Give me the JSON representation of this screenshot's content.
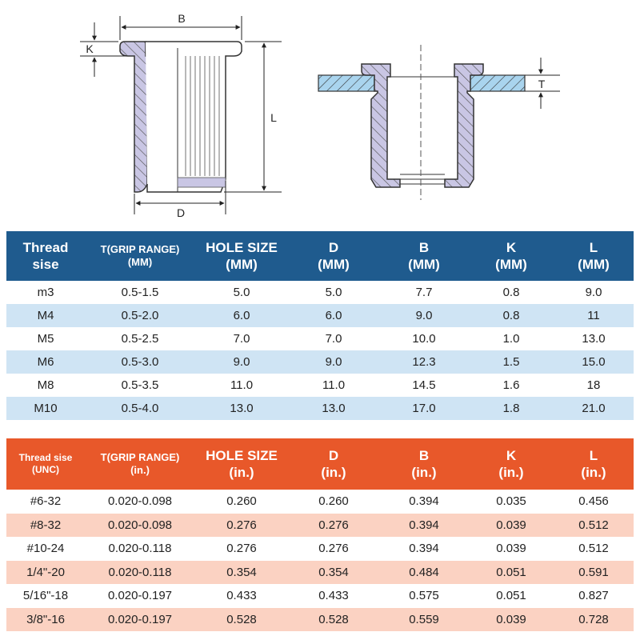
{
  "diagram": {
    "labels": {
      "B": "B",
      "K": "K",
      "L": "L",
      "D": "D",
      "T": "T"
    }
  },
  "metric_table": {
    "headers": [
      {
        "line1": "Thread",
        "line2": "sise"
      },
      {
        "line1": "T(GRIP RANGE)",
        "line2": "(MM)"
      },
      {
        "line1": "HOLE SIZE",
        "line2": "(MM)"
      },
      {
        "line1": "D",
        "line2": "(MM)"
      },
      {
        "line1": "B",
        "line2": "(MM)"
      },
      {
        "line1": "K",
        "line2": "(MM)"
      },
      {
        "line1": "L",
        "line2": "(MM)"
      }
    ],
    "rows": [
      [
        "m3",
        "0.5-1.5",
        "5.0",
        "5.0",
        "7.7",
        "0.8",
        "9.0"
      ],
      [
        "M4",
        "0.5-2.0",
        "6.0",
        "6.0",
        "9.0",
        "0.8",
        "11"
      ],
      [
        "M5",
        "0.5-2.5",
        "7.0",
        "7.0",
        "10.0",
        "1.0",
        "13.0"
      ],
      [
        "M6",
        "0.5-3.0",
        "9.0",
        "9.0",
        "12.3",
        "1.5",
        "15.0"
      ],
      [
        "M8",
        "0.5-3.5",
        "11.0",
        "11.0",
        "14.5",
        "1.6",
        "18"
      ],
      [
        "M10",
        "0.5-4.0",
        "13.0",
        "13.0",
        "17.0",
        "1.8",
        "21.0"
      ]
    ]
  },
  "unc_table": {
    "headers": [
      {
        "line1": "Thread sise",
        "line2": "(UNC)"
      },
      {
        "line1": "T(GRIP RANGE)",
        "line2": "(in.)"
      },
      {
        "line1": "HOLE SIZE",
        "line2": "(in.)"
      },
      {
        "line1": "D",
        "line2": "(in.)"
      },
      {
        "line1": "B",
        "line2": "(in.)"
      },
      {
        "line1": "K",
        "line2": "(in.)"
      },
      {
        "line1": "L",
        "line2": "(in.)"
      }
    ],
    "rows": [
      [
        "#6-32",
        "0.020-0.098",
        "0.260",
        "0.260",
        "0.394",
        "0.035",
        "0.456"
      ],
      [
        "#8-32",
        "0.020-0.098",
        "0.276",
        "0.276",
        "0.394",
        "0.039",
        "0.512"
      ],
      [
        "#10-24",
        "0.020-0.118",
        "0.276",
        "0.276",
        "0.394",
        "0.039",
        "0.512"
      ],
      [
        "1/4\"-20",
        "0.020-0.118",
        "0.354",
        "0.354",
        "0.484",
        "0.051",
        "0.591"
      ],
      [
        "5/16\"-18",
        "0.020-0.197",
        "0.433",
        "0.433",
        "0.575",
        "0.051",
        "0.827"
      ],
      [
        "3/8\"-16",
        "0.020-0.197",
        "0.528",
        "0.528",
        "0.559",
        "0.039",
        "0.728"
      ]
    ]
  },
  "colors": {
    "metric_header": "#1f5b8e",
    "metric_stripe": "#cfe4f4",
    "unc_header": "#e8582a",
    "unc_stripe": "#fbd2c2",
    "part_fill": "#c9c6e4",
    "sheet_fill": "#a9d4ee"
  }
}
